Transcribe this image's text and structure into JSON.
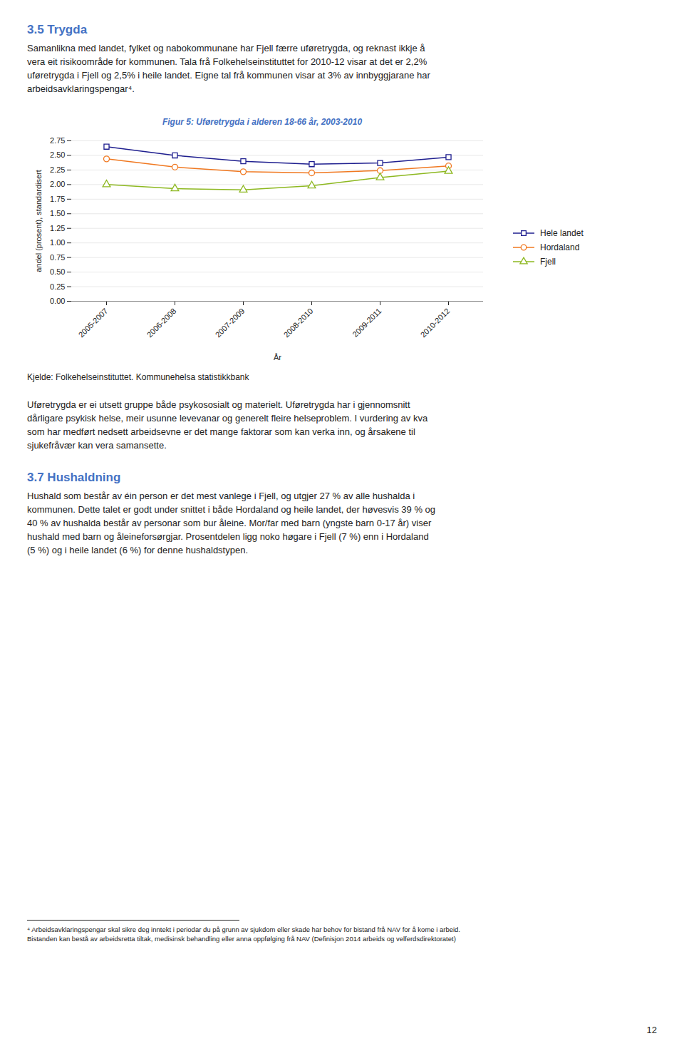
{
  "chart_data": {
    "type": "line",
    "title": "Figur 5: Uføretrygda i alderen 18-66 år, 2003-2010",
    "xlabel": "År",
    "ylabel": "andel (prosent), standardisert",
    "categories": [
      "2005-2007",
      "2006-2008",
      "2007-2009",
      "2008-2010",
      "2009-2011",
      "2010-2012"
    ],
    "series": [
      {
        "name": "Hele landet",
        "color": "#1F1F8F",
        "marker": "square",
        "values": [
          2.65,
          2.5,
          2.4,
          2.35,
          2.37,
          2.47
        ]
      },
      {
        "name": "Hordaland",
        "color": "#F07820",
        "marker": "circle",
        "values": [
          2.44,
          2.3,
          2.22,
          2.2,
          2.24,
          2.32
        ]
      },
      {
        "name": "Fjell",
        "color": "#8DB820",
        "marker": "triangle",
        "values": [
          2.0,
          1.93,
          1.91,
          1.98,
          2.12,
          2.23
        ]
      }
    ],
    "ylim": [
      0,
      2.75
    ],
    "yticks": [
      {
        "value": 0,
        "label": "0.00"
      },
      0.25,
      {
        "value": 0.5,
        "label": "0.50"
      },
      0.75,
      {
        "value": 1,
        "label": "1.00"
      },
      1.25,
      {
        "value": 1.5,
        "label": "1.50"
      },
      1.75,
      {
        "value": 2,
        "label": "2.00"
      },
      2.25,
      {
        "value": 2.5,
        "label": "2.50"
      },
      2.75
    ],
    "grid": true,
    "legend": "right"
  },
  "page_texts": {
    "before_chart": [
      {
        "heading": "3.5 Trygda",
        "lines": [
          "Samanlikna med landet, fylket og nabokommunane har Fjell færre uføretrygda, og reknast ikkje å",
          "vera eit risikoområde for kommunen.  Tala frå Folkehelseinstituttet for 2010-12 visar at det er 2,2%",
          "uføretrygda i Fjell og 2,5% i heile landet. Eigne tal frå kommunen visar at 3% av innbyggjarane har",
          "arbeidsavklaringspengar⁴."
        ]
      }
    ],
    "source": "Kjelde: Folkehelseinstituttet. Kommunehelsa statistikkbank",
    "after_chart": [
      {
        "lines": [
          "Uføretrygda er ei utsett gruppe både psykososialt og materielt. Uføretrygda har i gjennomsnitt",
          "dårligare psykisk helse, meir usunne levevanar og generelt fleire helseproblem. I vurdering av kva",
          "som har medført nedsett arbeidsevne er det mange faktorar som kan verka inn, og årsakene til",
          "sjukefråvær kan vera samansette."
        ]
      },
      {
        "heading": "3.7 Hushaldning",
        "lines": [
          "Hushald som består av éin person er det mest vanlege i Fjell, og utgjer 27 % av alle hushalda i",
          "kommunen. Dette talet er godt under snittet i både Hordaland og heile landet, der høvesvis 39 % og",
          "40 % av hushalda består av personar som bur åleine.  Mor/far med barn (yngste barn 0-17 år) viser",
          "hushald med barn og åleineforsørgjar.  Prosentdelen ligg noko høgare i Fjell (7 %) enn i Hordaland",
          "(5 %) og i heile landet (6 %) for denne hushaldstypen."
        ]
      }
    ],
    "footnotes": [
      "⁴ Arbeidsavklaringspengar skal sikre deg inntekt i periodar du på grunn av sjukdom eller skade har behov for bistand frå NAV for å kome i arbeid.",
      "Bistanden kan bestå av arbeidsretta tiltak, medisinsk behandling eller anna oppfølging frå NAV (Definisjon 2014 arbeids og velferdsdirektoratet)"
    ],
    "page_number": "12"
  }
}
